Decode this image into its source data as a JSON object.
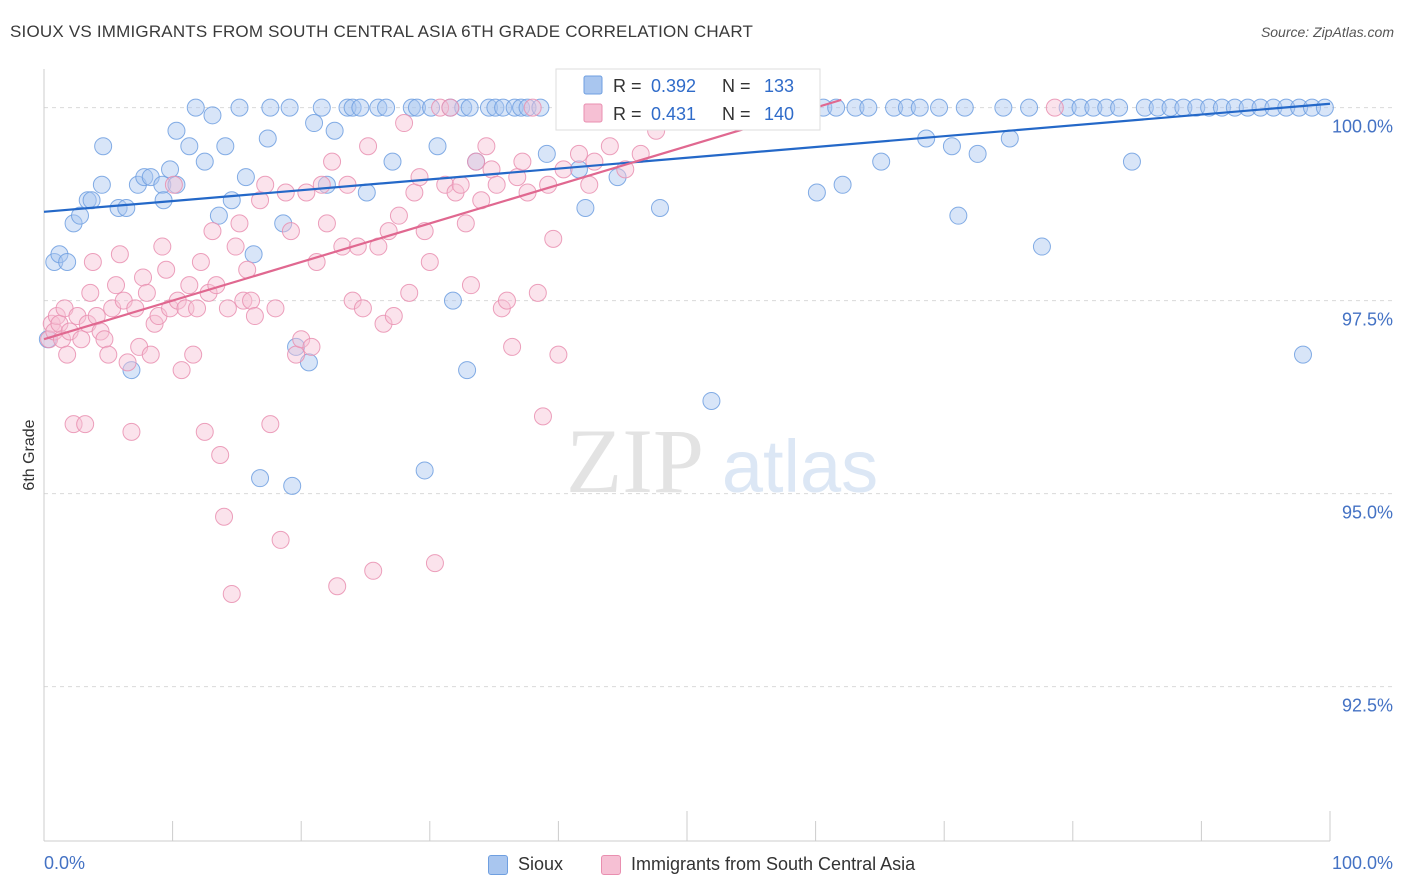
{
  "title": "SIOUX VS IMMIGRANTS FROM SOUTH CENTRAL ASIA 6TH GRADE CORRELATION CHART",
  "source": "Source: ZipAtlas.com",
  "watermark": {
    "zip": "ZIP",
    "atlas": "atlas"
  },
  "chart_data": {
    "type": "scatter",
    "xlabel": "",
    "ylabel": "6th Grade",
    "xlim": [
      0,
      100
    ],
    "ylim": [
      90.5,
      100.5
    ],
    "x_tick_labels": {
      "left": "0.0%",
      "right": "100.0%"
    },
    "y_ticks": [
      {
        "value": 100.0,
        "label": "100.0%"
      },
      {
        "value": 97.5,
        "label": "97.5%"
      },
      {
        "value": 95.0,
        "label": "95.0%"
      },
      {
        "value": 92.5,
        "label": "92.5%"
      }
    ],
    "grid": true,
    "legend_position": "top-center",
    "series": [
      {
        "name": "Sioux",
        "color": "#6f9fe0",
        "fill": "#a9c6ef",
        "line_color": "#2468c8",
        "r_label": "R =",
        "r_value": "0.392",
        "n_label": "N =",
        "n_value": "133",
        "trend": {
          "x0": 0,
          "y0": 98.65,
          "x1": 100,
          "y1": 100.05
        },
        "points": [
          [
            0.3,
            97.0
          ],
          [
            0.8,
            98.0
          ],
          [
            1.2,
            98.1
          ],
          [
            1.8,
            98.0
          ],
          [
            2.3,
            98.5
          ],
          [
            2.8,
            98.6
          ],
          [
            3.4,
            98.8
          ],
          [
            3.7,
            98.8
          ],
          [
            4.5,
            99.0
          ],
          [
            4.6,
            99.5
          ],
          [
            5.8,
            98.7
          ],
          [
            6.4,
            98.7
          ],
          [
            6.8,
            96.6
          ],
          [
            7.3,
            99.0
          ],
          [
            7.8,
            99.1
          ],
          [
            8.3,
            99.1
          ],
          [
            9.2,
            99.0
          ],
          [
            9.3,
            98.8
          ],
          [
            9.8,
            99.2
          ],
          [
            10.3,
            99.0
          ],
          [
            10.3,
            99.7
          ],
          [
            11.3,
            99.5
          ],
          [
            11.8,
            100.0
          ],
          [
            12.5,
            99.3
          ],
          [
            13.1,
            99.9
          ],
          [
            13.6,
            98.6
          ],
          [
            14.1,
            99.5
          ],
          [
            14.6,
            98.8
          ],
          [
            15.2,
            100.0
          ],
          [
            15.7,
            99.1
          ],
          [
            16.3,
            98.1
          ],
          [
            16.8,
            95.2
          ],
          [
            17.4,
            99.6
          ],
          [
            17.6,
            100.0
          ],
          [
            18.6,
            98.5
          ],
          [
            19.1,
            100.0
          ],
          [
            19.3,
            95.1
          ],
          [
            19.6,
            96.9
          ],
          [
            20.6,
            96.7
          ],
          [
            21.0,
            99.8
          ],
          [
            21.6,
            100.0
          ],
          [
            22.0,
            99.0
          ],
          [
            22.6,
            99.7
          ],
          [
            23.6,
            100.0
          ],
          [
            24.0,
            100.0
          ],
          [
            24.6,
            100.0
          ],
          [
            25.1,
            98.9
          ],
          [
            26.0,
            100.0
          ],
          [
            26.6,
            100.0
          ],
          [
            27.1,
            99.3
          ],
          [
            28.6,
            100.0
          ],
          [
            29.0,
            100.0
          ],
          [
            29.6,
            95.3
          ],
          [
            30.1,
            100.0
          ],
          [
            30.6,
            99.5
          ],
          [
            31.6,
            100.0
          ],
          [
            31.8,
            97.5
          ],
          [
            32.6,
            100.0
          ],
          [
            32.9,
            96.6
          ],
          [
            33.1,
            100.0
          ],
          [
            33.6,
            99.3
          ],
          [
            34.6,
            100.0
          ],
          [
            35.1,
            100.0
          ],
          [
            35.7,
            100.0
          ],
          [
            36.6,
            100.0
          ],
          [
            37.1,
            100.0
          ],
          [
            37.6,
            100.0
          ],
          [
            38.6,
            100.0
          ],
          [
            39.1,
            99.4
          ],
          [
            40.6,
            100.0
          ],
          [
            41.1,
            100.0
          ],
          [
            41.6,
            99.2
          ],
          [
            42.1,
            98.7
          ],
          [
            42.6,
            100.0
          ],
          [
            43.6,
            100.0
          ],
          [
            44.1,
            100.0
          ],
          [
            44.6,
            99.1
          ],
          [
            45.6,
            100.0
          ],
          [
            46.6,
            100.0
          ],
          [
            47.6,
            100.0
          ],
          [
            47.9,
            98.7
          ],
          [
            48.6,
            100.0
          ],
          [
            49.6,
            100.0
          ],
          [
            50.6,
            100.0
          ],
          [
            51.6,
            100.0
          ],
          [
            51.9,
            96.2
          ],
          [
            52.6,
            100.0
          ],
          [
            53.6,
            100.0
          ],
          [
            54.6,
            100.0
          ],
          [
            55.6,
            100.0
          ],
          [
            56.6,
            100.0
          ],
          [
            57.6,
            100.0
          ],
          [
            58.6,
            100.0
          ],
          [
            59.6,
            100.0
          ],
          [
            60.1,
            98.9
          ],
          [
            60.6,
            100.0
          ],
          [
            61.6,
            100.0
          ],
          [
            62.1,
            99.0
          ],
          [
            63.1,
            100.0
          ],
          [
            64.1,
            100.0
          ],
          [
            65.1,
            99.3
          ],
          [
            66.1,
            100.0
          ],
          [
            67.1,
            100.0
          ],
          [
            68.1,
            100.0
          ],
          [
            68.6,
            99.6
          ],
          [
            69.6,
            100.0
          ],
          [
            70.6,
            99.5
          ],
          [
            71.1,
            98.6
          ],
          [
            71.6,
            100.0
          ],
          [
            72.6,
            99.4
          ],
          [
            74.6,
            100.0
          ],
          [
            75.1,
            99.6
          ],
          [
            76.6,
            100.0
          ],
          [
            77.6,
            98.2
          ],
          [
            79.6,
            100.0
          ],
          [
            80.6,
            100.0
          ],
          [
            81.6,
            100.0
          ],
          [
            82.6,
            100.0
          ],
          [
            83.6,
            100.0
          ],
          [
            84.6,
            99.3
          ],
          [
            85.6,
            100.0
          ],
          [
            86.6,
            100.0
          ],
          [
            87.6,
            100.0
          ],
          [
            88.6,
            100.0
          ],
          [
            89.6,
            100.0
          ],
          [
            90.6,
            100.0
          ],
          [
            91.6,
            100.0
          ],
          [
            92.6,
            100.0
          ],
          [
            93.6,
            100.0
          ],
          [
            94.6,
            100.0
          ],
          [
            95.6,
            100.0
          ],
          [
            96.6,
            100.0
          ],
          [
            97.6,
            100.0
          ],
          [
            97.9,
            96.8
          ],
          [
            98.6,
            100.0
          ],
          [
            99.6,
            100.0
          ]
        ]
      },
      {
        "name": "Immigrants from South Central Asia",
        "color": "#e98fb0",
        "fill": "#f6c0d4",
        "line_color": "#e06890",
        "r_label": "R =",
        "r_value": "0.431",
        "n_label": "N =",
        "n_value": "140",
        "trend": {
          "x0": 0,
          "y0": 97.0,
          "x1": 62,
          "y1": 100.1
        },
        "points": [
          [
            0.4,
            97.0
          ],
          [
            0.6,
            97.2
          ],
          [
            0.8,
            97.1
          ],
          [
            1.0,
            97.3
          ],
          [
            1.2,
            97.2
          ],
          [
            1.4,
            97.0
          ],
          [
            1.6,
            97.4
          ],
          [
            1.8,
            96.8
          ],
          [
            2.0,
            97.1
          ],
          [
            2.3,
            95.9
          ],
          [
            2.6,
            97.3
          ],
          [
            2.9,
            97.0
          ],
          [
            3.2,
            95.9
          ],
          [
            3.4,
            97.2
          ],
          [
            3.6,
            97.6
          ],
          [
            3.8,
            98.0
          ],
          [
            4.1,
            97.3
          ],
          [
            4.4,
            97.1
          ],
          [
            4.7,
            97.0
          ],
          [
            5.0,
            96.8
          ],
          [
            5.3,
            97.4
          ],
          [
            5.6,
            97.7
          ],
          [
            5.9,
            98.1
          ],
          [
            6.2,
            97.5
          ],
          [
            6.5,
            96.7
          ],
          [
            6.8,
            95.8
          ],
          [
            7.1,
            97.4
          ],
          [
            7.4,
            96.9
          ],
          [
            7.7,
            97.8
          ],
          [
            8.0,
            97.6
          ],
          [
            8.3,
            96.8
          ],
          [
            8.6,
            97.2
          ],
          [
            8.9,
            97.3
          ],
          [
            9.2,
            98.2
          ],
          [
            9.5,
            97.9
          ],
          [
            9.8,
            97.4
          ],
          [
            10.1,
            99.0
          ],
          [
            10.4,
            97.5
          ],
          [
            10.7,
            96.6
          ],
          [
            11.0,
            97.4
          ],
          [
            11.3,
            97.7
          ],
          [
            11.6,
            96.8
          ],
          [
            11.9,
            97.4
          ],
          [
            12.2,
            98.0
          ],
          [
            12.5,
            95.8
          ],
          [
            12.8,
            97.6
          ],
          [
            13.1,
            98.4
          ],
          [
            13.4,
            97.7
          ],
          [
            13.7,
            95.5
          ],
          [
            14.0,
            94.7
          ],
          [
            14.3,
            97.4
          ],
          [
            14.6,
            93.7
          ],
          [
            14.9,
            98.2
          ],
          [
            15.2,
            98.5
          ],
          [
            15.5,
            97.5
          ],
          [
            15.8,
            97.9
          ],
          [
            16.1,
            97.5
          ],
          [
            16.4,
            97.3
          ],
          [
            16.8,
            98.8
          ],
          [
            17.2,
            99.0
          ],
          [
            17.6,
            95.9
          ],
          [
            18.0,
            97.4
          ],
          [
            18.4,
            94.4
          ],
          [
            18.8,
            98.9
          ],
          [
            19.2,
            98.4
          ],
          [
            19.6,
            96.8
          ],
          [
            20.0,
            97.0
          ],
          [
            20.4,
            98.9
          ],
          [
            20.8,
            96.9
          ],
          [
            21.2,
            98.0
          ],
          [
            21.6,
            99.0
          ],
          [
            22.0,
            98.5
          ],
          [
            22.4,
            99.3
          ],
          [
            22.8,
            93.8
          ],
          [
            23.2,
            98.2
          ],
          [
            23.6,
            99.0
          ],
          [
            24.0,
            97.5
          ],
          [
            24.4,
            98.2
          ],
          [
            24.8,
            97.4
          ],
          [
            25.2,
            99.5
          ],
          [
            25.6,
            94.0
          ],
          [
            26.0,
            98.2
          ],
          [
            26.4,
            97.2
          ],
          [
            26.8,
            98.4
          ],
          [
            27.2,
            97.3
          ],
          [
            27.6,
            98.6
          ],
          [
            28.0,
            99.8
          ],
          [
            28.4,
            97.6
          ],
          [
            28.8,
            98.9
          ],
          [
            29.2,
            99.1
          ],
          [
            29.6,
            98.4
          ],
          [
            30.0,
            98.0
          ],
          [
            30.4,
            94.1
          ],
          [
            30.8,
            100.0
          ],
          [
            31.2,
            99.0
          ],
          [
            31.6,
            100.0
          ],
          [
            32.0,
            98.9
          ],
          [
            32.4,
            99.0
          ],
          [
            32.8,
            98.5
          ],
          [
            33.2,
            97.7
          ],
          [
            33.6,
            99.3
          ],
          [
            34.0,
            98.8
          ],
          [
            34.4,
            99.5
          ],
          [
            34.8,
            99.2
          ],
          [
            35.2,
            99.0
          ],
          [
            35.6,
            97.4
          ],
          [
            36.0,
            97.5
          ],
          [
            36.4,
            96.9
          ],
          [
            36.8,
            99.1
          ],
          [
            37.2,
            99.3
          ],
          [
            37.6,
            98.9
          ],
          [
            38.0,
            100.0
          ],
          [
            38.4,
            97.6
          ],
          [
            38.8,
            96.0
          ],
          [
            39.2,
            99.0
          ],
          [
            39.6,
            98.3
          ],
          [
            40.0,
            96.8
          ],
          [
            40.4,
            99.2
          ],
          [
            40.8,
            100.0
          ],
          [
            41.2,
            100.0
          ],
          [
            41.6,
            99.4
          ],
          [
            42.0,
            100.0
          ],
          [
            42.4,
            99.0
          ],
          [
            42.8,
            99.3
          ],
          [
            43.2,
            100.0
          ],
          [
            43.6,
            100.0
          ],
          [
            44.0,
            99.5
          ],
          [
            44.4,
            100.0
          ],
          [
            44.8,
            100.0
          ],
          [
            45.2,
            99.2
          ],
          [
            45.6,
            100.0
          ],
          [
            46.0,
            100.0
          ],
          [
            46.4,
            99.4
          ],
          [
            46.8,
            100.0
          ],
          [
            47.2,
            100.0
          ],
          [
            47.6,
            99.7
          ],
          [
            48.0,
            100.0
          ],
          [
            48.6,
            100.0
          ],
          [
            49.4,
            100.0
          ],
          [
            50.2,
            100.0
          ],
          [
            52.0,
            100.0
          ],
          [
            54.0,
            100.0
          ],
          [
            56.0,
            100.0
          ],
          [
            78.6,
            100.0
          ]
        ]
      }
    ]
  }
}
